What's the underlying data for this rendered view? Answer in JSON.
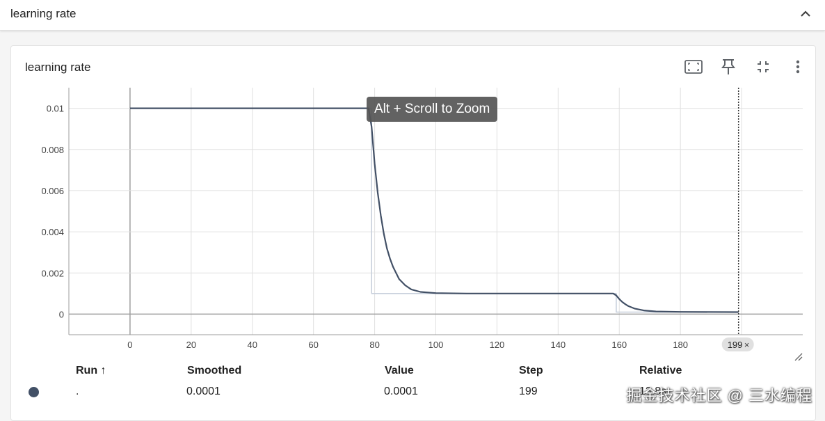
{
  "header": {
    "title": "learning rate"
  },
  "card": {
    "title": "learning rate"
  },
  "tooltip": {
    "text": "Alt + Scroll to Zoom"
  },
  "colors": {
    "run": "#425066",
    "run_light": "#c8d0dc",
    "grid": "#e0e0e0",
    "axis": "#9e9e9e"
  },
  "chart_data": {
    "type": "line",
    "xlim": [
      -20,
      220
    ],
    "ylim": [
      -0.001,
      0.011
    ],
    "x_ticks": [
      "0",
      "20",
      "40",
      "60",
      "80",
      "100",
      "120",
      "140",
      "160",
      "180"
    ],
    "x_tick_values": [
      0,
      20,
      40,
      60,
      80,
      100,
      120,
      140,
      160,
      180
    ],
    "y_ticks": [
      "0",
      "0.002",
      "0.004",
      "0.006",
      "0.008",
      "0.01"
    ],
    "y_tick_values": [
      0,
      0.002,
      0.004,
      0.006,
      0.008,
      0.01
    ],
    "grid": true,
    "hover_step_label": "199",
    "series": [
      {
        "kind": "raw",
        "points": [
          [
            0,
            0.01
          ],
          [
            79,
            0.01
          ],
          [
            79,
            0.001
          ],
          [
            159,
            0.001
          ],
          [
            159,
            0.0001
          ],
          [
            199,
            0.0001
          ]
        ]
      },
      {
        "kind": "smoothed",
        "points": [
          [
            0,
            0.01
          ],
          [
            78,
            0.01
          ],
          [
            79,
            0.0091
          ],
          [
            80,
            0.0073
          ],
          [
            81,
            0.0059
          ],
          [
            82,
            0.0048
          ],
          [
            83,
            0.0039
          ],
          [
            84,
            0.0032
          ],
          [
            85,
            0.0027
          ],
          [
            86,
            0.0023
          ],
          [
            87,
            0.002
          ],
          [
            88,
            0.0017
          ],
          [
            90,
            0.0014
          ],
          [
            92,
            0.0012
          ],
          [
            95,
            0.00108
          ],
          [
            100,
            0.00102
          ],
          [
            110,
            0.001
          ],
          [
            158,
            0.001
          ],
          [
            159,
            0.00091
          ],
          [
            160,
            0.00073
          ],
          [
            161,
            0.00059
          ],
          [
            162,
            0.00048
          ],
          [
            163,
            0.00039
          ],
          [
            165,
            0.00027
          ],
          [
            168,
            0.00018
          ],
          [
            172,
            0.00013
          ],
          [
            180,
            0.00011
          ],
          [
            199,
            0.0001
          ]
        ]
      }
    ]
  },
  "table": {
    "headers": {
      "run": "Run ↑",
      "smoothed": "Smoothed",
      "value": "Value",
      "step": "Step",
      "relative": "Relative"
    },
    "row": {
      "run": ".",
      "smoothed": "0.0001",
      "value": "0.0001",
      "step": "199",
      "relative": "13.8s"
    }
  },
  "watermark": "掘金技术社区 @ 三水编程"
}
